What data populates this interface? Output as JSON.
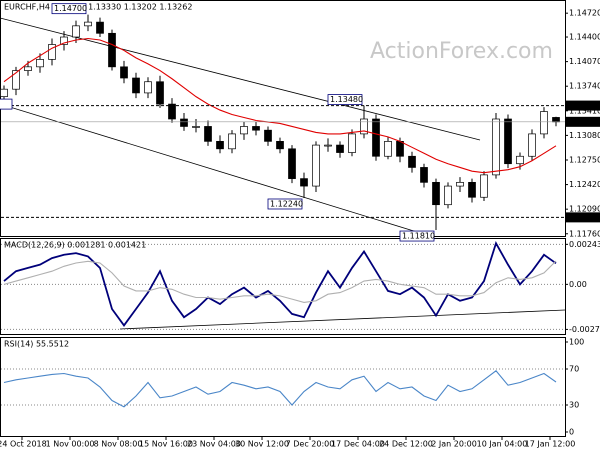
{
  "watermark": "ActionForex.com",
  "chart_data": [
    {
      "type": "candlestick",
      "title": "EURCHF,H4 1.13321 1.13330 1.13202 1.13262",
      "open": [
        1.136,
        1.137,
        1.1395,
        1.14,
        1.141,
        1.143,
        1.144,
        1.1455,
        1.146,
        1.1445,
        1.14,
        1.1385,
        1.1365,
        1.138,
        1.135,
        1.133,
        1.132,
        1.132,
        1.13,
        1.129,
        1.131,
        1.132,
        1.1315,
        1.13,
        1.129,
        1.125,
        1.124,
        1.1295,
        1.1295,
        1.1285,
        1.131,
        1.133,
        1.128,
        1.13,
        1.128,
        1.1265,
        1.1245,
        1.1215,
        1.124,
        1.1245,
        1.1225,
        1.1255,
        1.133,
        1.127,
        1.128,
        1.131,
        1.13321
      ],
      "high": [
        1.1375,
        1.14,
        1.1408,
        1.1418,
        1.1438,
        1.1448,
        1.1462,
        1.147,
        1.1466,
        1.145,
        1.1408,
        1.1392,
        1.1386,
        1.1388,
        1.1358,
        1.1338,
        1.133,
        1.1328,
        1.1308,
        1.1315,
        1.1326,
        1.1326,
        1.132,
        1.1305,
        1.1295,
        1.1258,
        1.13,
        1.1304,
        1.13,
        1.1316,
        1.1348,
        1.1336,
        1.1306,
        1.1305,
        1.1286,
        1.127,
        1.125,
        1.1245,
        1.1252,
        1.125,
        1.126,
        1.1338,
        1.1336,
        1.1285,
        1.1316,
        1.1346,
        1.1333
      ],
      "low": [
        1.1352,
        1.1362,
        1.1388,
        1.1392,
        1.1402,
        1.1422,
        1.1432,
        1.1448,
        1.144,
        1.1395,
        1.1378,
        1.1358,
        1.1358,
        1.1345,
        1.1325,
        1.1314,
        1.1312,
        1.1294,
        1.1284,
        1.1284,
        1.1302,
        1.1308,
        1.1294,
        1.1284,
        1.1244,
        1.1224,
        1.1232,
        1.1286,
        1.1278,
        1.128,
        1.1304,
        1.1274,
        1.1276,
        1.1272,
        1.1258,
        1.1238,
        1.1181,
        1.121,
        1.1232,
        1.1218,
        1.122,
        1.125,
        1.1264,
        1.1262,
        1.1274,
        1.1304,
        1.13202
      ],
      "close": [
        1.137,
        1.1395,
        1.14,
        1.141,
        1.143,
        1.144,
        1.1455,
        1.146,
        1.1445,
        1.14,
        1.1385,
        1.1365,
        1.138,
        1.135,
        1.133,
        1.132,
        1.132,
        1.13,
        1.129,
        1.131,
        1.132,
        1.1315,
        1.13,
        1.129,
        1.125,
        1.124,
        1.1295,
        1.1295,
        1.1285,
        1.131,
        1.133,
        1.128,
        1.13,
        1.128,
        1.1265,
        1.1245,
        1.1215,
        1.124,
        1.1245,
        1.1225,
        1.1255,
        1.133,
        1.127,
        1.128,
        1.131,
        1.134,
        1.13262
      ],
      "series": [
        {
          "name": "MA",
          "color": "#e00000",
          "values": [
            1.138,
            1.1392,
            1.1405,
            1.1415,
            1.1425,
            1.1432,
            1.1436,
            1.1438,
            1.1436,
            1.143,
            1.1422,
            1.1412,
            1.1404,
            1.1395,
            1.1384,
            1.1372,
            1.136,
            1.135,
            1.1342,
            1.1336,
            1.1332,
            1.1328,
            1.1326,
            1.1324,
            1.132,
            1.1316,
            1.1312,
            1.131,
            1.131,
            1.1312,
            1.1314,
            1.131,
            1.1306,
            1.13,
            1.1292,
            1.1284,
            1.1276,
            1.127,
            1.1265,
            1.126,
            1.1258,
            1.126,
            1.1262,
            1.1266,
            1.1274,
            1.1284,
            1.1294
          ]
        }
      ],
      "ylim": [
        1.1173,
        1.1487
      ],
      "yticks": [
        {
          "value": 1.1472,
          "label": "1.14720"
        },
        {
          "value": 1.144,
          "label": "1.14400"
        },
        {
          "value": 1.1407,
          "label": "1.14070"
        },
        {
          "value": 1.1374,
          "label": "1.13740"
        },
        {
          "value": 1.1341,
          "label": "1.13410"
        },
        {
          "value": 1.1308,
          "label": "1.13080"
        },
        {
          "value": 1.1275,
          "label": "1.12750"
        },
        {
          "value": 1.1242,
          "label": "1.12420"
        },
        {
          "value": 1.1209,
          "label": "1.12090"
        },
        {
          "value": 1.1176,
          "label": "1.11760"
        }
      ],
      "hlines": [
        {
          "value": 1.1348,
          "label": "1.13480"
        },
        {
          "value": 1.1198,
          "label": "1.11980"
        }
      ],
      "annotations": [
        {
          "value": 1.147,
          "label": "1.14700"
        },
        {
          "value": 1.1348,
          "label": "1.13480"
        },
        {
          "value": 1.1224,
          "label": "1.12240"
        },
        {
          "value": 1.1181,
          "label": "1.11810"
        },
        {
          "value": 1.135,
          "label": "50"
        }
      ]
    },
    {
      "type": "line",
      "title": "MACD(12,26,9) 0.001281 0.001421",
      "series": [
        {
          "name": "MACD",
          "color": "#00007a",
          "values": [
            0.0002,
            0.0008,
            0.001,
            0.0012,
            0.0016,
            0.0018,
            0.0019,
            0.0017,
            0.001,
            -0.0015,
            -0.0025,
            -0.0015,
            -0.0005,
            0.0008,
            -0.001,
            -0.002,
            -0.0015,
            -0.0008,
            -0.0012,
            -0.0006,
            -0.0002,
            -0.0008,
            -0.0004,
            -0.001,
            -0.0018,
            -0.002,
            -0.0005,
            0.0008,
            -0.0002,
            0.001,
            0.002,
            0.0008,
            -0.0004,
            -0.0006,
            -0.0002,
            -0.0008,
            -0.0019,
            -0.0006,
            -0.001,
            -0.0008,
            0.0002,
            0.0025,
            0.0012,
            0.0,
            0.0008,
            0.0018,
            0.001281
          ]
        },
        {
          "name": "Signal",
          "color": "#b0b0b0",
          "values": [
            0.0,
            0.0002,
            0.0004,
            0.0006,
            0.0008,
            0.0011,
            0.0013,
            0.0014,
            0.0013,
            0.0007,
            -0.0001,
            -0.0004,
            -0.0004,
            -0.0002,
            -0.0003,
            -0.0006,
            -0.0008,
            -0.0008,
            -0.0009,
            -0.0008,
            -0.0007,
            -0.0007,
            -0.0006,
            -0.0007,
            -0.0009,
            -0.0011,
            -0.001,
            -0.0006,
            -0.0005,
            -0.0002,
            0.0002,
            0.0003,
            0.0002,
            0.0,
            -0.0001,
            -0.0002,
            -0.0006,
            -0.0006,
            -0.0007,
            -0.0007,
            -0.0005,
            0.0001,
            0.0004,
            0.0003,
            0.0004,
            0.0007,
            0.001421
          ]
        }
      ],
      "ylim": [
        -0.0029,
        0.0027
      ],
      "yticks": [
        0.002436,
        {
          "value": 0,
          "label": "0.00"
        },
        -0.002742
      ]
    },
    {
      "type": "line",
      "title": "RSI(14) 55.5512",
      "series": [
        {
          "name": "RSI",
          "color": "#4a86c8",
          "values": [
            55,
            58,
            60,
            62,
            64,
            65,
            62,
            60,
            50,
            35,
            28,
            40,
            55,
            38,
            40,
            45,
            50,
            42,
            45,
            55,
            52,
            48,
            50,
            45,
            30,
            45,
            55,
            50,
            48,
            58,
            62,
            45,
            55,
            48,
            50,
            40,
            35,
            52,
            45,
            48,
            58,
            68,
            52,
            55,
            60,
            65,
            55.5512
          ]
        }
      ],
      "ylim": [
        0,
        100
      ],
      "yticks": [
        100,
        70,
        30,
        0
      ],
      "xticks": [
        {
          "value": 1.5,
          "label": "24 Oct 2018"
        },
        {
          "value": 5.5,
          "label": "1 Nov 00:00"
        },
        {
          "value": 9.5,
          "label": "8 Nov 08:00"
        },
        {
          "value": 13.5,
          "label": "15 Nov 16:00"
        },
        {
          "value": 17.5,
          "label": "23 Nov 04:00"
        },
        {
          "value": 21.5,
          "label": "30 Nov 12:00"
        },
        {
          "value": 25.5,
          "label": "7 Dec 20:00"
        },
        {
          "value": 29.5,
          "label": "17 Dec 04:00"
        },
        {
          "value": 33.5,
          "label": "24 Dec 12:00"
        },
        {
          "value": 37.5,
          "label": "2 Jan 20:00"
        },
        {
          "value": 41.5,
          "label": "10 Jan 04:00"
        },
        {
          "value": 45.5,
          "label": "17 Jan 12:00"
        }
      ]
    }
  ]
}
